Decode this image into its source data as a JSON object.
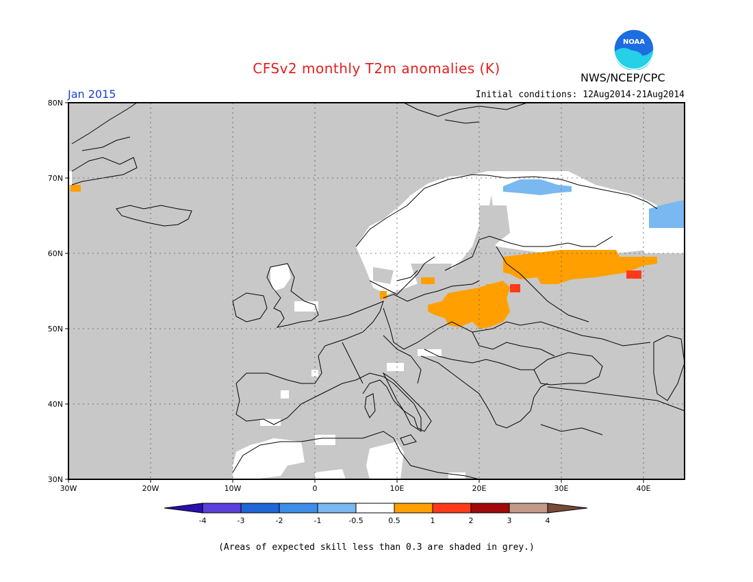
{
  "header": {
    "title": "CFSv2 monthly T2m anomalies (K)",
    "target_month": "Jan 2015",
    "initial_conditions": "Initial conditions: 12Aug2014-21Aug2014",
    "agency": "NWS/NCEP/CPC",
    "logo_text": "NOAA"
  },
  "map": {
    "region": "Europe",
    "lon_range": [
      -30,
      45
    ],
    "lat_range": [
      30,
      80
    ],
    "lon_ticks": [
      "30W",
      "20W",
      "10W",
      "0",
      "10E",
      "20E",
      "30E",
      "40E"
    ],
    "lat_ticks": [
      "30N",
      "40N",
      "50N",
      "60N",
      "70N",
      "80N"
    ],
    "grid": true,
    "background_color": "#c8c8c8",
    "land_outline_color": "#000000"
  },
  "anomaly_regions": [
    {
      "category": "neutral",
      "color": "#ffffff",
      "description": "Scandinavia"
    },
    {
      "category": "neutral",
      "color": "#ffffff",
      "description": "Northern Russia / Kola"
    },
    {
      "category": "neutral",
      "color": "#ffffff",
      "description": "Scotland"
    },
    {
      "category": "neutral",
      "color": "#ffffff",
      "description": "North Africa / Western Mediterranean"
    },
    {
      "category": "-1 to -0.5",
      "color": "#79b8f0",
      "description": "Northern Finland"
    },
    {
      "category": "-1 to -0.5",
      "color": "#79b8f0",
      "description": "Northwest Russia"
    },
    {
      "category": "0.5 to 1",
      "color": "#ffa000",
      "description": "Western Russia / Baltic"
    },
    {
      "category": "0.5 to 1",
      "color": "#ffa000",
      "description": "Poland / Belarus"
    },
    {
      "category": "0.5 to 1",
      "color": "#ffa000",
      "description": "Greenland coast"
    },
    {
      "category": "1 to 2",
      "color": "#ff3a1a",
      "description": "Isolated cells"
    }
  ],
  "colorbar": {
    "labels": [
      "-4",
      "-3",
      "-2",
      "-1",
      "-0.5",
      "0.5",
      "1",
      "2",
      "3",
      "4"
    ],
    "colors": [
      "#2a10b0",
      "#5a3fd8",
      "#1f66d6",
      "#3e8ee8",
      "#79b8f0",
      "#ffffff",
      "#ffa000",
      "#ff3a1a",
      "#a10a0a",
      "#c29a8a",
      "#7a4a38"
    ]
  },
  "footnote": "(Areas of expected skill less than 0.3 are shaded in grey.)"
}
